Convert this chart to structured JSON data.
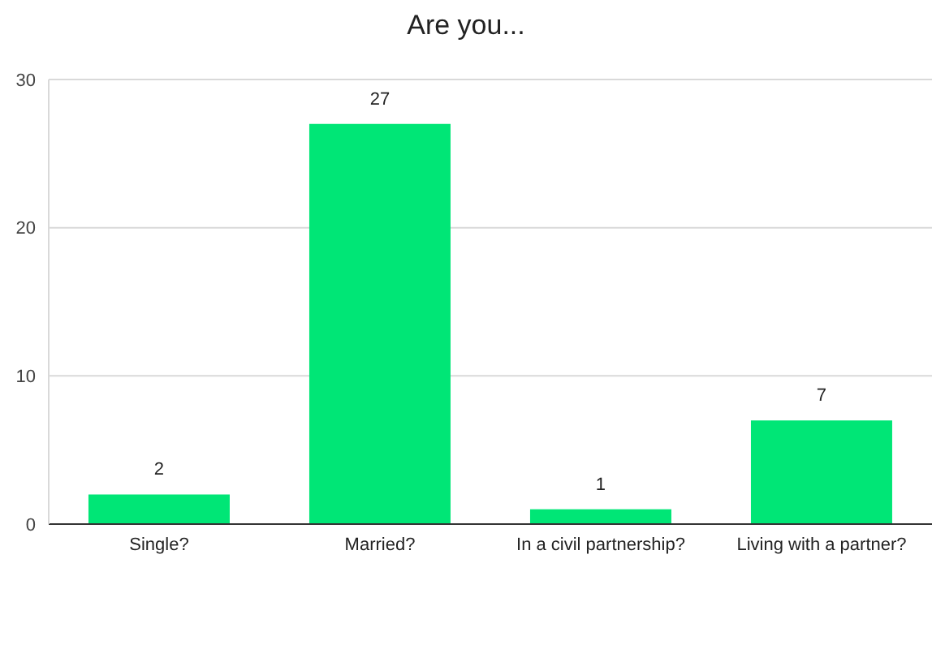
{
  "chart_data": {
    "type": "bar",
    "title": "Are you...",
    "categories": [
      "Single?",
      "Married?",
      "In a civil partnership?",
      "Living with a partner?"
    ],
    "values": [
      2,
      27,
      1,
      7
    ],
    "color": "#00e676",
    "ylim": [
      0,
      30
    ],
    "yticks": [
      0,
      10,
      20,
      30
    ],
    "grid": "y",
    "data_labels": true
  }
}
